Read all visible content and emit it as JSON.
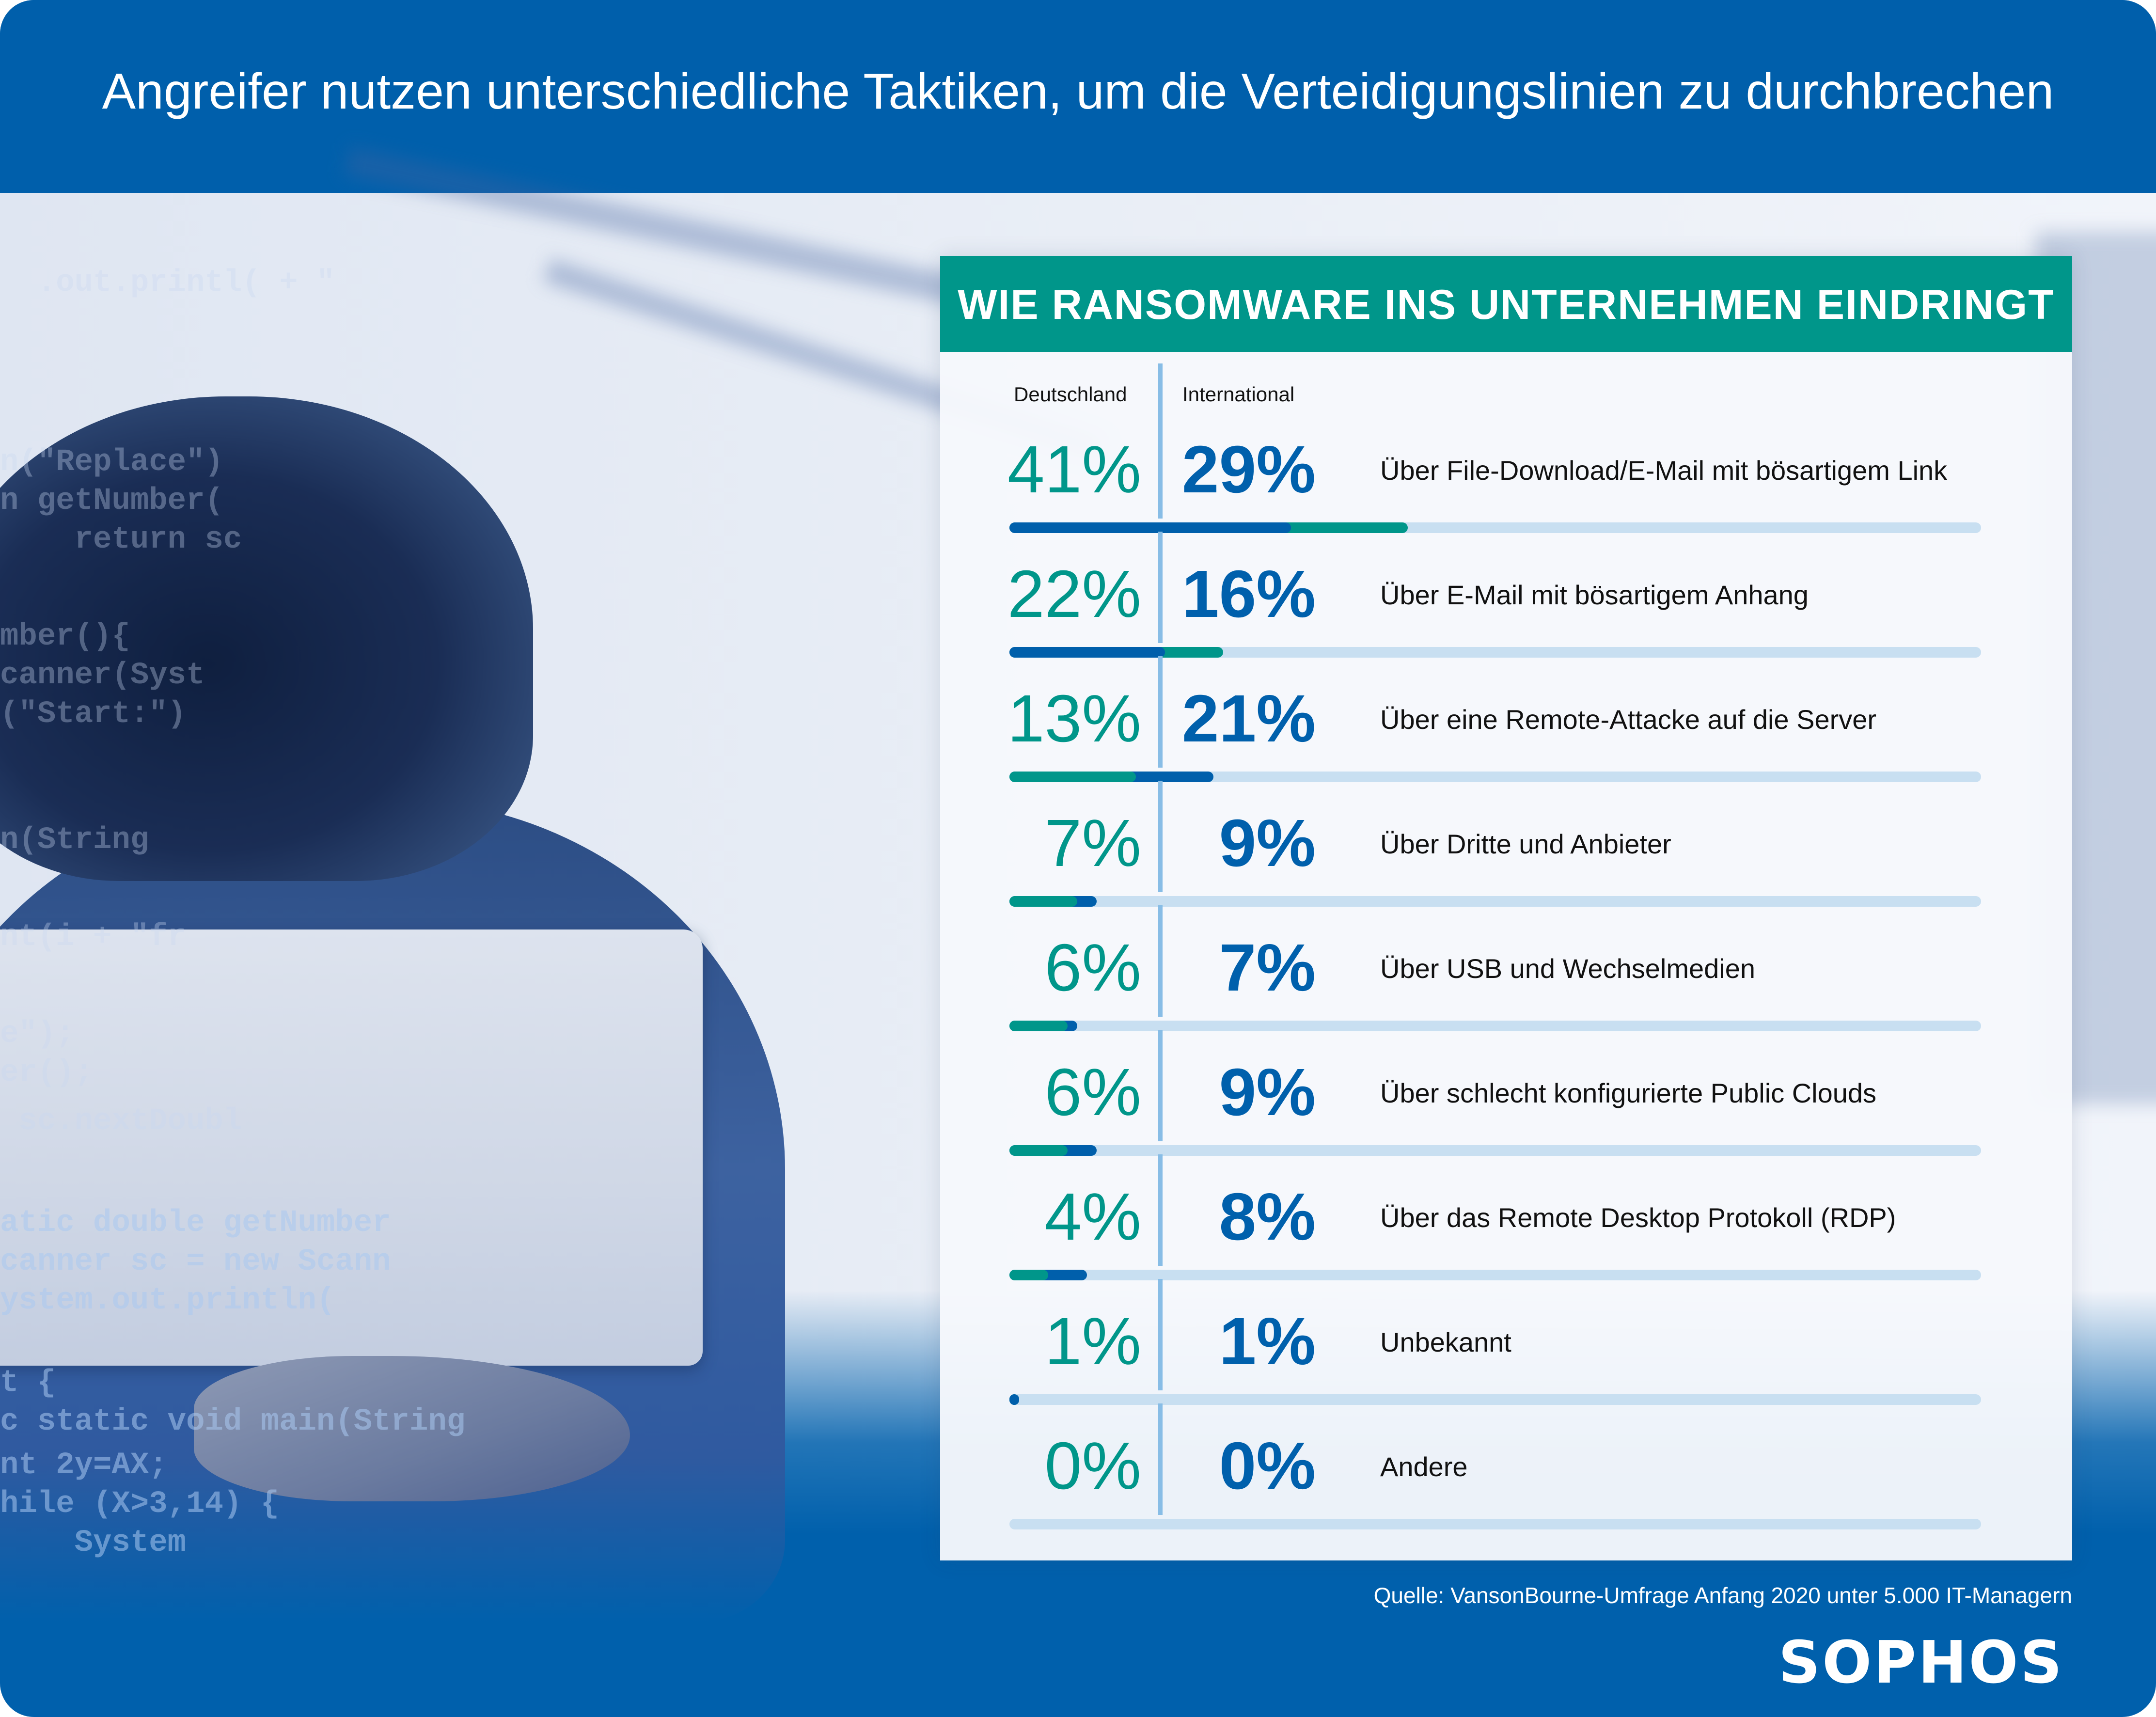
{
  "header": {
    "title": "Angreifer nutzen unterschiedliche Taktiken, um die Verteidigungslinien zu durchbrechen"
  },
  "card": {
    "title": "WIE RANSOMWARE INS UNTERNEHMEN EINDRINGT",
    "col_de": "Deutschland",
    "col_int": "International"
  },
  "colors": {
    "header_blue": "#005fab",
    "teal": "#00968a",
    "blue": "#0060ac",
    "track": "#c8dff1",
    "divider": "#88bde6"
  },
  "chart_data": {
    "type": "bar",
    "title": "WIE RANSOMWARE INS UNTERNEHMEN EINDRINGT",
    "xlabel": "",
    "ylabel": "",
    "ylim": [
      0,
      100
    ],
    "categories": [
      "Über File-Download/E-Mail mit bösartigem Link",
      "Über E-Mail mit bösartigem Anhang",
      "Über eine Remote-Attacke auf die Server",
      "Über Dritte und Anbieter",
      "Über USB und Wechselmedien",
      "Über schlecht konfigurierte Public Clouds",
      "Über das Remote Desktop Protokoll (RDP)",
      "Unbekannt",
      "Andere"
    ],
    "series": [
      {
        "name": "Deutschland",
        "color": "#00968a",
        "values": [
          41,
          22,
          13,
          7,
          6,
          6,
          4,
          1,
          0
        ]
      },
      {
        "name": "International",
        "color": "#0060ac",
        "values": [
          29,
          16,
          21,
          9,
          7,
          9,
          8,
          1,
          0
        ]
      }
    ],
    "labels_de": [
      "41%",
      "22%",
      "13%",
      "7%",
      "6%",
      "6%",
      "4%",
      "1%",
      "0%"
    ],
    "labels_int": [
      "29%",
      "16%",
      "21%",
      "9%",
      "7%",
      "9%",
      "8%",
      "1%",
      "0%"
    ],
    "legend": "top-left",
    "grid": false
  },
  "footer": {
    "source": "Quelle: VansonBourne-Umfrage Anfang 2020 unter 5.000 IT-Managern",
    "logo": "SOPHOS"
  },
  "background_code": [
    "  .out.printl( + \"",
    "n(\"Replace\")",
    "n getNumber(",
    "    return sc",
    "mber(){",
    "canner(Syst",
    "(\"Start:\")",
    "n(String",
    "nt(i + \"fr",
    "e\");",
    "er();",
    " sc.nextDoubl",
    "atic double getNumber",
    "canner sc = new Scann",
    "ystem.out.println(",
    "t {",
    "c static void main(String",
    "nt 2y=AX;",
    "hile (X>3,14) {",
    "    System"
  ]
}
